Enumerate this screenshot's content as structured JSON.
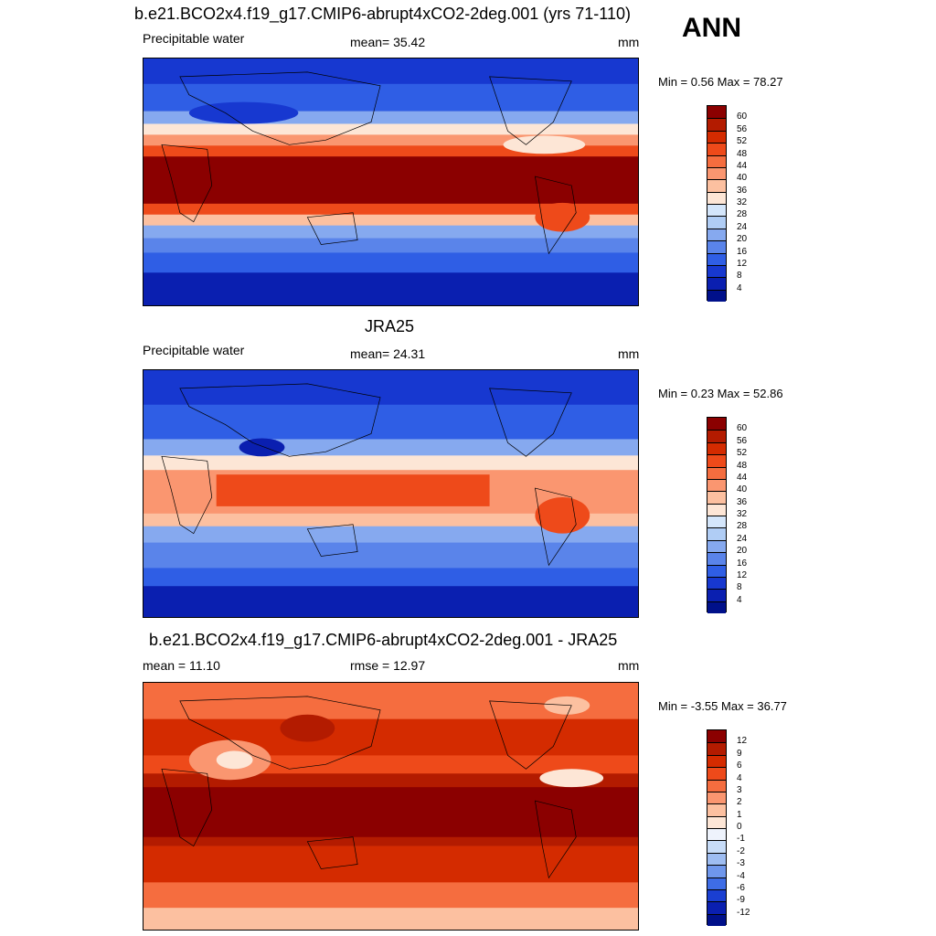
{
  "panel1": {
    "title": "b.e21.BCO2x4.f19_g17.CMIP6-abrupt4xCO2-2deg.001 (yrs 71-110)",
    "variable": "Precipitable water",
    "mean": "mean=  35.42",
    "units": "mm",
    "minmax": "Min =   0.56 Max =  78.27"
  },
  "season": "ANN",
  "panel2": {
    "title": "JRA25",
    "variable": "Precipitable water",
    "mean": "mean=  24.31",
    "units": "mm",
    "minmax": "Min =   0.23 Max =  52.86"
  },
  "panel3": {
    "title": "b.e21.BCO2x4.f19_g17.CMIP6-abrupt4xCO2-2deg.001 - JRA25",
    "mean": "mean =  11.10",
    "rmse": "rmse =  12.97",
    "units": "mm",
    "minmax": "Min =  -3.55 Max =  36.77"
  },
  "colorbar_abs": {
    "labels": [
      "60",
      "56",
      "52",
      "48",
      "44",
      "40",
      "36",
      "32",
      "28",
      "24",
      "20",
      "16",
      "12",
      "8",
      "4"
    ],
    "colors": [
      "#8b0000",
      "#b31b00",
      "#d42b00",
      "#ee4a1a",
      "#f56d3f",
      "#fa9670",
      "#fcc0a0",
      "#fde6d6",
      "#d4e6fb",
      "#b0cdf5",
      "#86a9ef",
      "#5a84ea",
      "#2f5ee5",
      "#1738d0",
      "#0a1fb0",
      "#00108a"
    ]
  },
  "colorbar_diff": {
    "labels": [
      "12",
      "9",
      "6",
      "4",
      "3",
      "2",
      "1",
      "0",
      "-1",
      "-2",
      "-3",
      "-4",
      "-6",
      "-9",
      "-12"
    ],
    "colors": [
      "#8b0000",
      "#b31b00",
      "#d42b00",
      "#ee4a1a",
      "#f56d3f",
      "#fa9670",
      "#fcc0a0",
      "#fde6d6",
      "#eef3fc",
      "#c7dcf8",
      "#9ebdf2",
      "#6f97ec",
      "#3e6de6",
      "#1a3fd2",
      "#0a1fb0",
      "#00108a"
    ]
  }
}
